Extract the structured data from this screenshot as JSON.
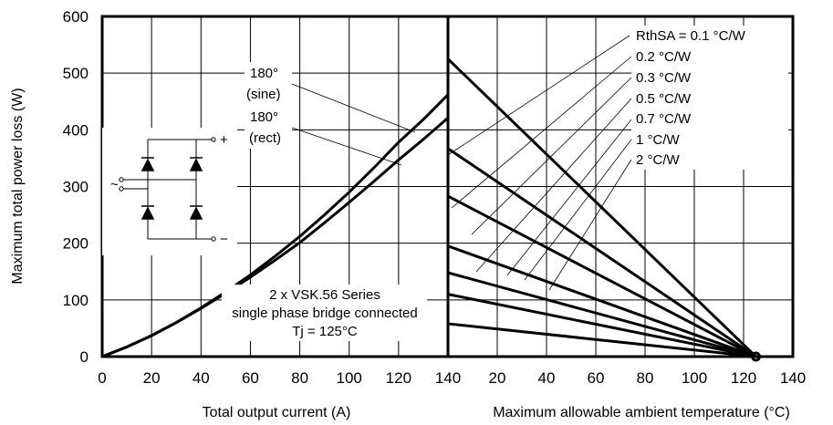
{
  "chart_data": [
    {
      "type": "line",
      "xlabel": "Total output current (A)",
      "ylabel": "Maximum total power loss (W)",
      "xlim": [
        0,
        140
      ],
      "ylim": [
        0,
        600
      ],
      "x_ticks": [
        "0",
        "20",
        "40",
        "60",
        "80",
        "100",
        "120",
        "140"
      ],
      "y_ticks": [
        "0",
        "100",
        "200",
        "300",
        "400",
        "500",
        "600"
      ],
      "grid": true,
      "series": [
        {
          "name": "180° (sine)",
          "x": [
            0,
            10,
            20,
            30,
            40,
            50,
            60,
            70,
            80,
            90,
            100,
            110,
            120,
            130,
            140
          ],
          "y": [
            0,
            17,
            37,
            60,
            86,
            114,
            144,
            177,
            212,
            250,
            290,
            333,
            378,
            418,
            462
          ]
        },
        {
          "name": "180° (rect)",
          "x": [
            0,
            10,
            20,
            30,
            40,
            50,
            60,
            70,
            80,
            90,
            100,
            110,
            120,
            130,
            140
          ],
          "y": [
            0,
            17,
            37,
            60,
            85,
            112,
            140,
            170,
            201,
            236,
            272,
            309,
            347,
            383,
            421
          ]
        }
      ],
      "annotations": {
        "sine_line1": "180°",
        "sine_line2": "(sine)",
        "rect_line1": "180°",
        "rect_line2": "(rect)",
        "note_line1": "2 x VSK.56 Series",
        "note_line2": "single phase bridge connected",
        "note_line3": "Tj = 125°C",
        "plus": "+",
        "minus": "−",
        "ac": "~"
      }
    },
    {
      "type": "line",
      "xlabel": "Maximum allowable ambient temperature (°C)",
      "xlim": [
        0,
        140
      ],
      "ylim": [
        0,
        600
      ],
      "x_ticks": [
        "20",
        "40",
        "60",
        "80",
        "100",
        "120",
        "140"
      ],
      "grid": true,
      "series": [
        {
          "name": "RthSA = 0.1 °C/W",
          "x": [
            0,
            125
          ],
          "y": [
            525,
            0
          ]
        },
        {
          "name": "0.2 °C/W",
          "x": [
            0,
            125
          ],
          "y": [
            367,
            0
          ]
        },
        {
          "name": "0.3 °C/W",
          "x": [
            0,
            125
          ],
          "y": [
            283,
            0
          ]
        },
        {
          "name": "0.5 °C/W",
          "x": [
            0,
            125
          ],
          "y": [
            195,
            0
          ]
        },
        {
          "name": "0.7 °C/W",
          "x": [
            0,
            125
          ],
          "y": [
            148,
            0
          ]
        },
        {
          "name": "1 °C/W",
          "x": [
            0,
            125
          ],
          "y": [
            110,
            0
          ]
        },
        {
          "name": "2 °C/W",
          "x": [
            0,
            125
          ],
          "y": [
            58,
            0
          ]
        }
      ]
    }
  ]
}
